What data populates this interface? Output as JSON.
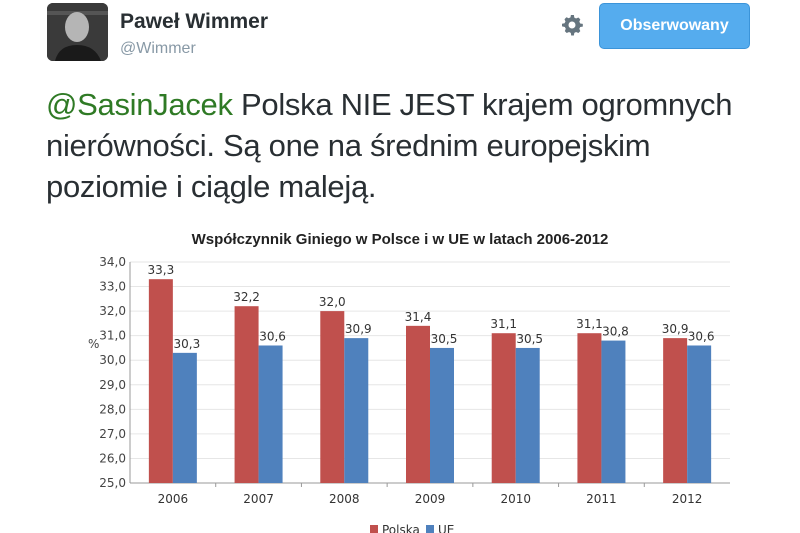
{
  "header": {
    "display_name": "Paweł Wimmer",
    "handle": "@Wimmer",
    "follow_button": "Obserwowany",
    "settings_icon": "gear-icon"
  },
  "tweet": {
    "mention": "@SasinJacek",
    "text": " Polska NIE JEST krajem ogromnych nierówności. Są one na średnim europejskim poziomie i ciągle maleją."
  },
  "colors": {
    "accent": "#55acee",
    "mention": "#2f7a25",
    "polska": "#c0504d",
    "ue": "#4f81bd"
  },
  "chart_data": {
    "type": "bar",
    "title": "Współczynnik Giniego w Polsce i w UE w latach 2006-2012",
    "xlabel": "",
    "ylabel": "%",
    "ylim": [
      25,
      34
    ],
    "yticks": [
      "25,0",
      "26,0",
      "27,0",
      "28,0",
      "29,0",
      "30,0",
      "31,0",
      "32,0",
      "33,0",
      "34,0"
    ],
    "grid": true,
    "legend_position": "bottom",
    "categories": [
      "2006",
      "2007",
      "2008",
      "2009",
      "2010",
      "2011",
      "2012"
    ],
    "series": [
      {
        "name": "Polska",
        "values": [
          33.3,
          32.2,
          32.0,
          31.4,
          31.1,
          31.1,
          30.9
        ],
        "labels": [
          "33,3",
          "32,2",
          "32,0",
          "31,4",
          "31,1",
          "31,1",
          "30,9"
        ]
      },
      {
        "name": "UE",
        "values": [
          30.3,
          30.6,
          30.9,
          30.5,
          30.5,
          30.8,
          30.6
        ],
        "labels": [
          "30,3",
          "30,6",
          "30,9",
          "30,5",
          "30,5",
          "30,8",
          "30,6"
        ]
      }
    ]
  }
}
